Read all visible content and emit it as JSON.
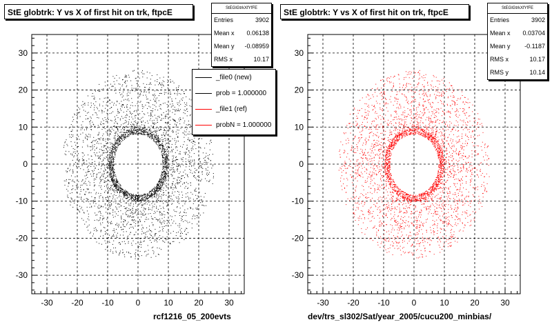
{
  "panels": [
    {
      "title": "StE globtrk: Y vs X of first hit on trk, ftpcE",
      "stats": {
        "header": "StEGlGtrkXfYfFE",
        "rows": [
          {
            "label": "Entries",
            "value": "3902"
          },
          {
            "label": "Mean x",
            "value": "0.06138"
          },
          {
            "label": "Mean y",
            "value": "-0.08959"
          },
          {
            "label": "RMS x",
            "value": "10.17"
          }
        ]
      },
      "legend": [
        {
          "label": "_file0 (new)",
          "color": "#000000"
        },
        {
          "label": "prob = 1.000000",
          "color": "#000000"
        },
        {
          "label": "_file1 (ref)",
          "color": "#ff0000"
        },
        {
          "label": "probN = 1.000000",
          "color": "#ff0000"
        }
      ],
      "footer": "rcf1216_05_200evts",
      "marker_color": "#000000"
    },
    {
      "title": "StE globtrk: Y vs X of first hit on trk, ftpcE",
      "stats": {
        "header": "StEGlGtrkXfYfFE",
        "rows": [
          {
            "label": "Entries",
            "value": "3902"
          },
          {
            "label": "Mean x",
            "value": "0.03704"
          },
          {
            "label": "Mean y",
            "value": "-0.1187"
          },
          {
            "label": "RMS x",
            "value": "10.17"
          },
          {
            "label": "RMS y",
            "value": "10.14"
          }
        ]
      },
      "footer": "dev/trs_sl302/Sat/year_2005/cucu200_minbias/",
      "marker_color": "#ff0000"
    }
  ],
  "chart_data": [
    {
      "type": "scatter",
      "title": "StE globtrk: Y vs X of first hit on trk, ftpcE",
      "xlim": [
        -35,
        35
      ],
      "ylim": [
        -35,
        35
      ],
      "xticks": [
        -30,
        -20,
        -10,
        0,
        10,
        20,
        30
      ],
      "yticks": [
        -30,
        -20,
        -10,
        0,
        10,
        20,
        30
      ],
      "grid": true,
      "series": [
        {
          "name": "_file0 (new)",
          "color": "#000000"
        }
      ],
      "distribution": {
        "shape": "annulus",
        "inner_radius": 8,
        "outer_radius": 25,
        "entries": 3902
      }
    },
    {
      "type": "scatter",
      "title": "StE globtrk: Y vs X of first hit on trk, ftpcE",
      "xlim": [
        -35,
        35
      ],
      "ylim": [
        -35,
        35
      ],
      "xticks": [
        -30,
        -20,
        -10,
        0,
        10,
        20,
        30
      ],
      "yticks": [
        -30,
        -20,
        -10,
        0,
        10,
        20,
        30
      ],
      "grid": true,
      "series": [
        {
          "name": "_file1 (ref)",
          "color": "#ff0000"
        }
      ],
      "distribution": {
        "shape": "annulus",
        "inner_radius": 8,
        "outer_radius": 25,
        "entries": 3902
      }
    }
  ]
}
